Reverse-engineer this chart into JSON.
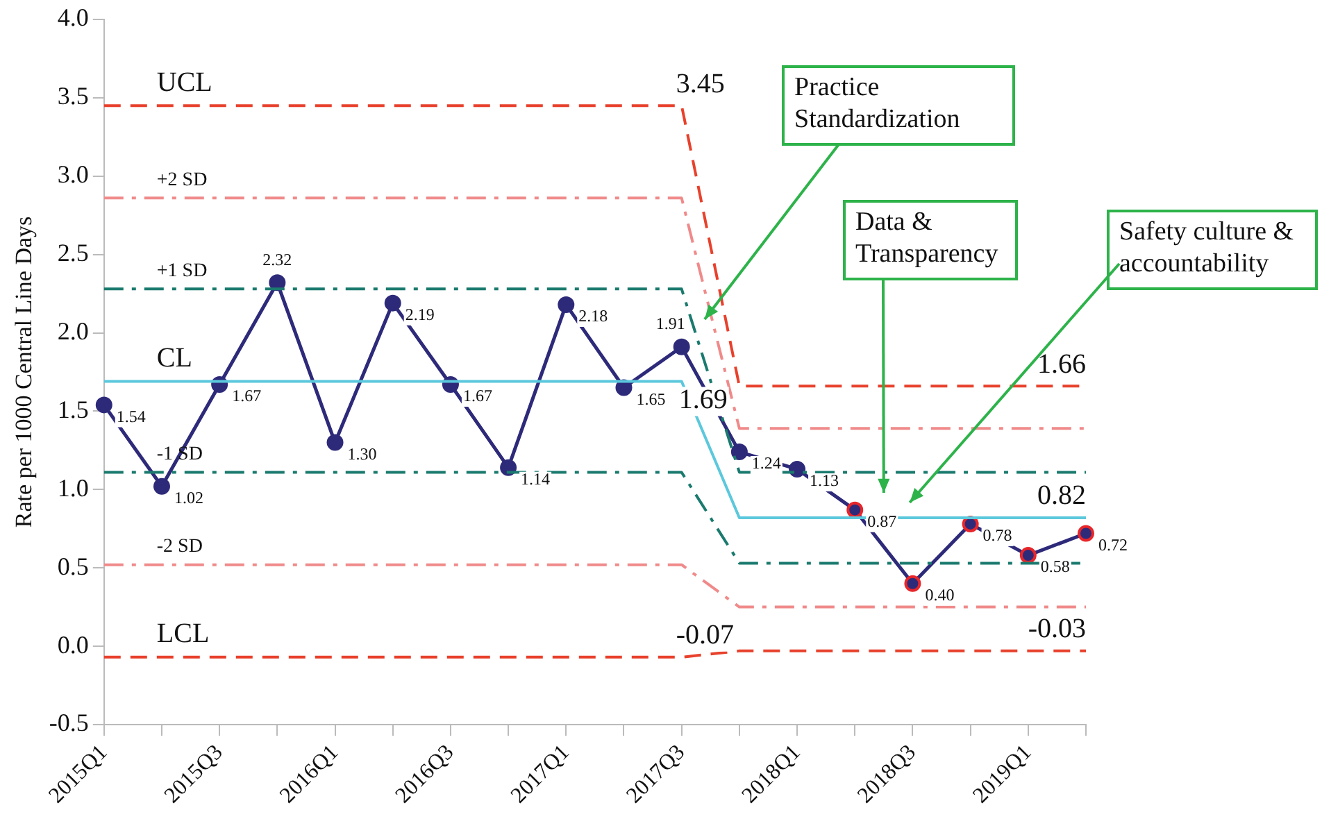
{
  "chart_data": {
    "type": "line",
    "ylabel": "Rate per 1000 Central Line Days",
    "categories": [
      "2015Q1",
      null,
      "2015Q3",
      null,
      "2016Q1",
      null,
      "2016Q3",
      null,
      "2017Q1",
      null,
      "2017Q3",
      null,
      "2018Q1",
      null,
      "2018Q3",
      null,
      "2019Q1",
      null
    ],
    "series": [
      {
        "name": "UCL",
        "color": "#e8412c",
        "line_style": "dashed",
        "marker": "none",
        "values": [
          3.45,
          3.45,
          3.45,
          3.45,
          3.45,
          3.45,
          3.45,
          3.45,
          3.45,
          3.45,
          3.45,
          1.66,
          1.66,
          1.66,
          1.66,
          1.66,
          1.66,
          1.66
        ],
        "value_labels": [
          null,
          null,
          null,
          null,
          null,
          null,
          null,
          null,
          null,
          null,
          "3.45",
          null,
          null,
          null,
          null,
          null,
          null,
          "1.66"
        ]
      },
      {
        "name": "+2 SD",
        "color": "#f08a8a",
        "line_style": "dashdot",
        "marker": "none",
        "values": [
          2.86,
          2.86,
          2.86,
          2.86,
          2.86,
          2.86,
          2.86,
          2.86,
          2.86,
          2.86,
          2.86,
          1.39,
          1.39,
          1.39,
          1.39,
          1.39,
          1.39,
          1.39
        ]
      },
      {
        "name": "+1 SD",
        "color": "#1a7a6e",
        "line_style": "dashdot",
        "marker": "none",
        "values": [
          2.28,
          2.28,
          2.28,
          2.28,
          2.28,
          2.28,
          2.28,
          2.28,
          2.28,
          2.28,
          2.28,
          1.11,
          1.11,
          1.11,
          1.11,
          1.11,
          1.11,
          1.11
        ]
      },
      {
        "name": "CL",
        "color": "#5bc8dc",
        "line_style": "solid",
        "marker": "none",
        "values": [
          1.69,
          1.69,
          1.69,
          1.69,
          1.69,
          1.69,
          1.69,
          1.69,
          1.69,
          1.69,
          1.69,
          0.82,
          0.82,
          0.82,
          0.82,
          0.82,
          0.82,
          0.82
        ],
        "value_labels": [
          null,
          null,
          null,
          null,
          null,
          null,
          null,
          null,
          null,
          null,
          "1.69",
          null,
          null,
          null,
          null,
          null,
          null,
          "0.82"
        ]
      },
      {
        "name": "-1 SD",
        "color": "#1a7a6e",
        "line_style": "dashdot",
        "marker": "none",
        "values": [
          1.11,
          1.11,
          1.11,
          1.11,
          1.11,
          1.11,
          1.11,
          1.11,
          1.11,
          1.11,
          1.11,
          0.53,
          0.53,
          0.53,
          0.53,
          0.53,
          0.53,
          0.53
        ]
      },
      {
        "name": "-2 SD",
        "color": "#f08a8a",
        "line_style": "dashdot",
        "marker": "none",
        "values": [
          0.52,
          0.52,
          0.52,
          0.52,
          0.52,
          0.52,
          0.52,
          0.52,
          0.52,
          0.52,
          0.52,
          0.25,
          0.25,
          0.25,
          0.25,
          0.25,
          0.25,
          0.25
        ]
      },
      {
        "name": "LCL",
        "color": "#e8412c",
        "line_style": "dashed",
        "marker": "none",
        "values": [
          -0.07,
          -0.07,
          -0.07,
          -0.07,
          -0.07,
          -0.07,
          -0.07,
          -0.07,
          -0.07,
          -0.07,
          -0.07,
          -0.03,
          -0.03,
          -0.03,
          -0.03,
          -0.03,
          -0.03,
          -0.03
        ],
        "value_labels": [
          null,
          null,
          null,
          null,
          null,
          null,
          null,
          null,
          null,
          null,
          "-0.07",
          null,
          null,
          null,
          null,
          null,
          null,
          "-0.03"
        ]
      },
      {
        "color": "#2e2a7a",
        "line_style": "solid",
        "marker": "circle",
        "values": [
          1.54,
          1.02,
          1.67,
          2.32,
          1.3,
          2.19,
          1.67,
          1.14,
          2.18,
          1.65,
          1.91,
          1.24,
          1.13,
          0.87,
          0.4,
          0.78,
          0.58,
          0.72
        ],
        "colors": [
          "#2e2a7a",
          "#2e2a7a",
          "#2e2a7a",
          "#2e2a7a",
          "#2e2a7a",
          "#2e2a7a",
          "#2e2a7a",
          "#2e2a7a",
          "#2e2a7a",
          "#2e2a7a",
          "#2e2a7a",
          "#2e2a7a",
          "#2e2a7a",
          "#e8262a",
          "#e8262a",
          "#e8262a",
          "#e8262a",
          "#e8262a"
        ],
        "value_labels": [
          "1.54",
          "1.02",
          "1.67",
          "2.32",
          "1.30",
          "2.19",
          "1.67",
          "1.14",
          "2.18",
          "1.65",
          "1.91",
          "1.24",
          "1.13",
          "0.87",
          "0.40",
          "0.78",
          "0.58",
          "0.72"
        ]
      }
    ],
    "ylim": [
      -0.5,
      4.0
    ],
    "yticks": [
      {
        "value": -0.5,
        "label": "-0.5"
      },
      {
        "value": 0,
        "label": "0.0"
      },
      {
        "value": 0.5,
        "label": "0.5"
      },
      {
        "value": 1,
        "label": "1.0"
      },
      {
        "value": 1.5,
        "label": "1.5"
      },
      {
        "value": 2,
        "label": "2.0"
      },
      {
        "value": 2.5,
        "label": "2.5"
      },
      {
        "value": 3,
        "label": "3.0"
      },
      {
        "value": 3.5,
        "label": "3.5"
      },
      {
        "value": 4,
        "label": "4.0"
      }
    ],
    "annotations": [
      "Practice Standardization",
      "Data & Transparency",
      "Safety culture & accountability"
    ],
    "grid": false,
    "legend": false
  }
}
